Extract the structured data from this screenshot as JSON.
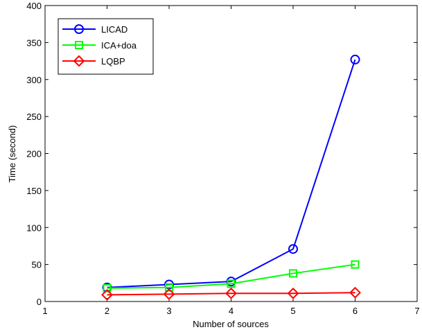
{
  "chart_data": {
    "type": "line",
    "xlabel": "Number of sources",
    "ylabel": "Time (second)",
    "xlim": [
      1,
      7
    ],
    "ylim": [
      0,
      400
    ],
    "xticks": [
      1,
      2,
      3,
      4,
      5,
      6,
      7
    ],
    "yticks": [
      0,
      50,
      100,
      150,
      200,
      250,
      300,
      350,
      400
    ],
    "grid": false,
    "legend_position": "top-left",
    "series": [
      {
        "name": "LICAD",
        "color": "#0000ff",
        "marker": "circle",
        "x": [
          2,
          3,
          4,
          5,
          6
        ],
        "values": [
          19,
          23,
          27,
          71,
          327
        ]
      },
      {
        "name": "ICA+doa",
        "color": "#00ff00",
        "marker": "square",
        "x": [
          2,
          3,
          4,
          5,
          6
        ],
        "values": [
          18,
          19,
          24,
          38,
          50
        ]
      },
      {
        "name": "LQBP",
        "color": "#ff0000",
        "marker": "diamond",
        "x": [
          2,
          3,
          4,
          5,
          6
        ],
        "values": [
          9,
          10,
          11,
          11,
          12
        ]
      }
    ]
  }
}
